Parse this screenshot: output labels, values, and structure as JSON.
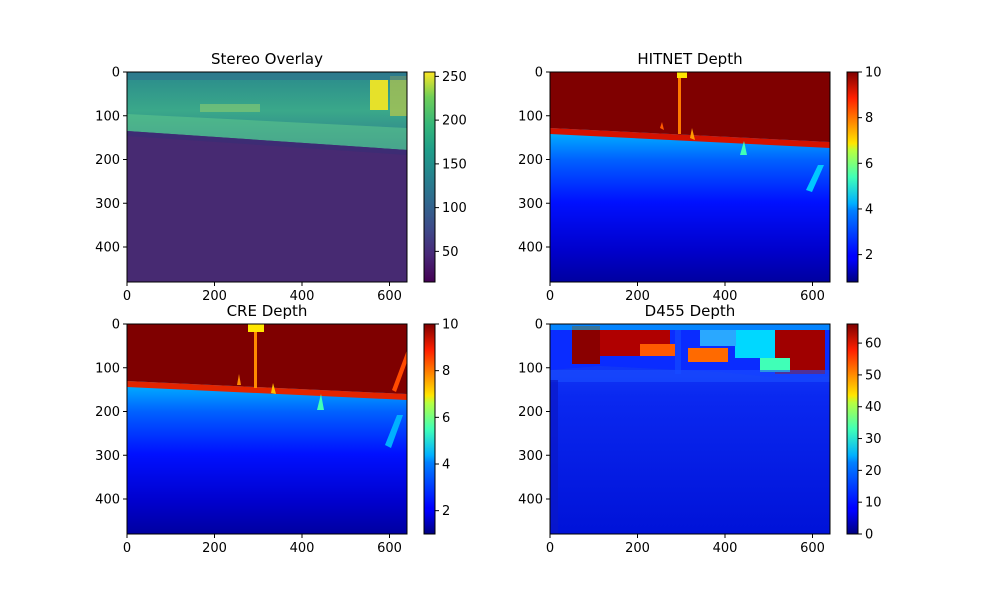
{
  "chart_data": [
    {
      "type": "heatmap",
      "title": "Stereo Overlay",
      "colormap": "viridis",
      "x_ticks": [
        0,
        200,
        400,
        600
      ],
      "y_ticks": [
        0,
        100,
        200,
        300,
        400
      ],
      "x_range": [
        0,
        640
      ],
      "y_range": [
        0,
        480
      ],
      "colorbar": {
        "ticks": [
          50,
          100,
          150,
          200,
          250
        ],
        "range": [
          15,
          255
        ]
      }
    },
    {
      "type": "heatmap",
      "title": "HITNET Depth",
      "colormap": "jet",
      "x_ticks": [
        0,
        200,
        400,
        600
      ],
      "y_ticks": [
        0,
        100,
        200,
        300,
        400
      ],
      "x_range": [
        0,
        640
      ],
      "y_range": [
        0,
        480
      ],
      "colorbar": {
        "ticks": [
          2,
          4,
          6,
          8,
          10
        ],
        "range": [
          0.8,
          10
        ]
      }
    },
    {
      "type": "heatmap",
      "title": "CRE Depth",
      "colormap": "jet",
      "x_ticks": [
        0,
        200,
        400,
        600
      ],
      "y_ticks": [
        0,
        100,
        200,
        300,
        400
      ],
      "x_range": [
        0,
        640
      ],
      "y_range": [
        0,
        480
      ],
      "colorbar": {
        "ticks": [
          2,
          4,
          6,
          8,
          10
        ],
        "range": [
          1.0,
          10
        ]
      }
    },
    {
      "type": "heatmap",
      "title": "D455 Depth",
      "colormap": "jet",
      "x_ticks": [
        0,
        200,
        400,
        600
      ],
      "y_ticks": [
        0,
        100,
        200,
        300,
        400
      ],
      "x_range": [
        0,
        640
      ],
      "y_range": [
        0,
        480
      ],
      "colorbar": {
        "ticks": [
          0,
          10,
          20,
          30,
          40,
          50,
          60
        ],
        "range": [
          0,
          66
        ]
      }
    }
  ]
}
